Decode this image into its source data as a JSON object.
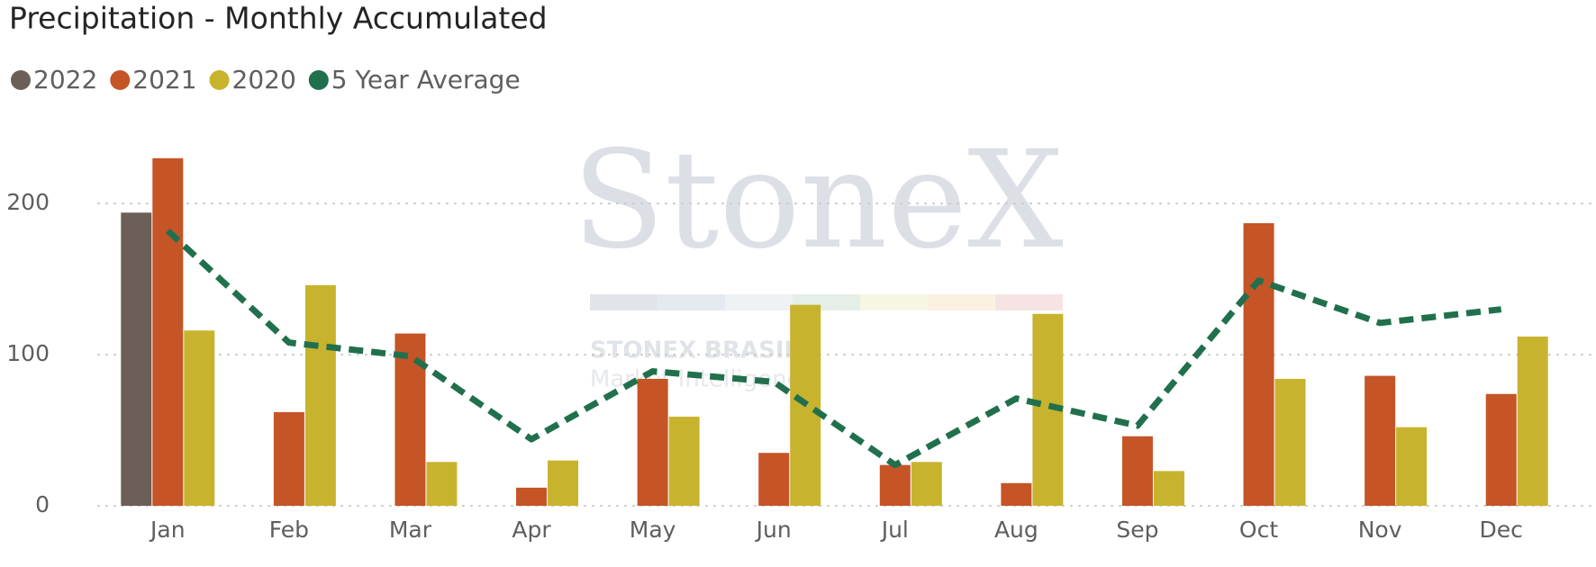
{
  "chart_data": {
    "type": "bar",
    "title": "Precipitation - Monthly Accumulated",
    "watermark": {
      "brand": "StoneX",
      "subtitle": "STONEX BRASIL",
      "tagline": "Market Intelligence"
    },
    "categories": [
      "Jan",
      "Feb",
      "Mar",
      "Apr",
      "May",
      "Jun",
      "Jul",
      "Aug",
      "Sep",
      "Oct",
      "Nov",
      "Dec"
    ],
    "series": [
      {
        "name": "2022",
        "color": "#6b5f57",
        "type": "bar",
        "values": [
          194,
          null,
          null,
          null,
          null,
          null,
          null,
          null,
          null,
          null,
          null,
          null
        ]
      },
      {
        "name": "2021",
        "color": "#c55427",
        "type": "bar",
        "values": [
          230,
          62,
          114,
          12,
          84,
          35,
          27,
          15,
          46,
          187,
          86,
          74
        ]
      },
      {
        "name": "2020",
        "color": "#c8b32e",
        "type": "bar",
        "values": [
          116,
          146,
          29,
          30,
          59,
          133,
          29,
          127,
          23,
          84,
          52,
          112
        ]
      },
      {
        "name": "5 Year Average",
        "color": "#21704d",
        "type": "line",
        "values": [
          182,
          108,
          99,
          44,
          89,
          82,
          27,
          71,
          53,
          149,
          121,
          130
        ]
      }
    ],
    "ylim": [
      0,
      240
    ],
    "yticks": [
      0,
      100,
      200
    ],
    "grid": true,
    "legend": "top-left"
  }
}
